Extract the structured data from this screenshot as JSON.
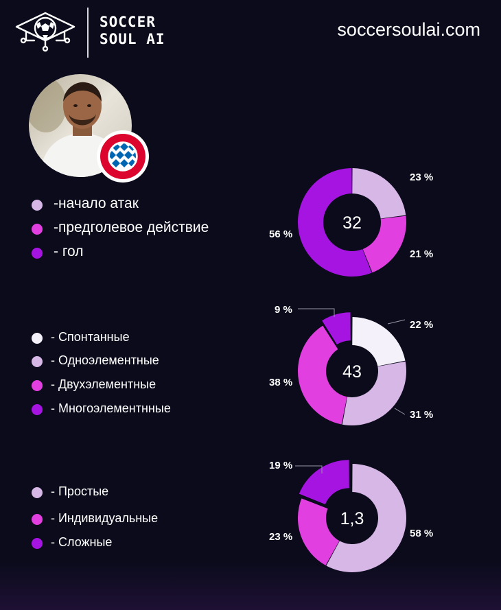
{
  "header": {
    "logo_line1": "SOCCER",
    "logo_line2": "SOUL AI",
    "site": "soccersoulai.com"
  },
  "colors": {
    "background": "#0b0b1c",
    "very_light": "#f5f1fb",
    "light": "#d6b7e6",
    "pink": "#e23fe0",
    "purple": "#a514e0"
  },
  "chart_data": [
    {
      "type": "pie",
      "variant": "donut",
      "center_label": "32",
      "legend": [
        {
          "label": "-начало атак",
          "color": "#d6b7e6"
        },
        {
          "label": "-предголевое действие",
          "color": "#e23fe0"
        },
        {
          "label": "- гол",
          "color": "#a514e0"
        }
      ],
      "slices": [
        {
          "value": 23,
          "label": "23 %",
          "color": "#d6b7e6"
        },
        {
          "value": 21,
          "label": "21 %",
          "color": "#e23fe0"
        },
        {
          "value": 56,
          "label": "56 %",
          "color": "#a514e0"
        }
      ]
    },
    {
      "type": "pie",
      "variant": "donut",
      "center_label": "43",
      "legend": [
        {
          "label": "- Спонтанные",
          "color": "#f5f1fb"
        },
        {
          "label": "- Одноэлементные",
          "color": "#d6b7e6"
        },
        {
          "label": "- Двухэлементные",
          "color": "#e23fe0"
        },
        {
          "label": "- Многоэлементнные",
          "color": "#a514e0"
        }
      ],
      "slices": [
        {
          "value": 22,
          "label": "22 %",
          "color": "#f5f1fb"
        },
        {
          "value": 31,
          "label": "31 %",
          "color": "#d6b7e6"
        },
        {
          "value": 38,
          "label": "38 %",
          "color": "#e23fe0"
        },
        {
          "value": 9,
          "label": "9 %",
          "color": "#a514e0",
          "exploded": true
        }
      ]
    },
    {
      "type": "pie",
      "variant": "donut",
      "center_label": "1,3",
      "legend": [
        {
          "label": "- Простые",
          "color": "#d6b7e6"
        },
        {
          "label": "- Индивидуальные",
          "color": "#e23fe0"
        },
        {
          "label": "- Сложные",
          "color": "#a514e0"
        }
      ],
      "slices": [
        {
          "value": 58,
          "label": "58 %",
          "color": "#d6b7e6"
        },
        {
          "value": 23,
          "label": "23 %",
          "color": "#e23fe0"
        },
        {
          "value": 19,
          "label": "19 %",
          "color": "#a514e0",
          "exploded": true
        }
      ]
    }
  ]
}
